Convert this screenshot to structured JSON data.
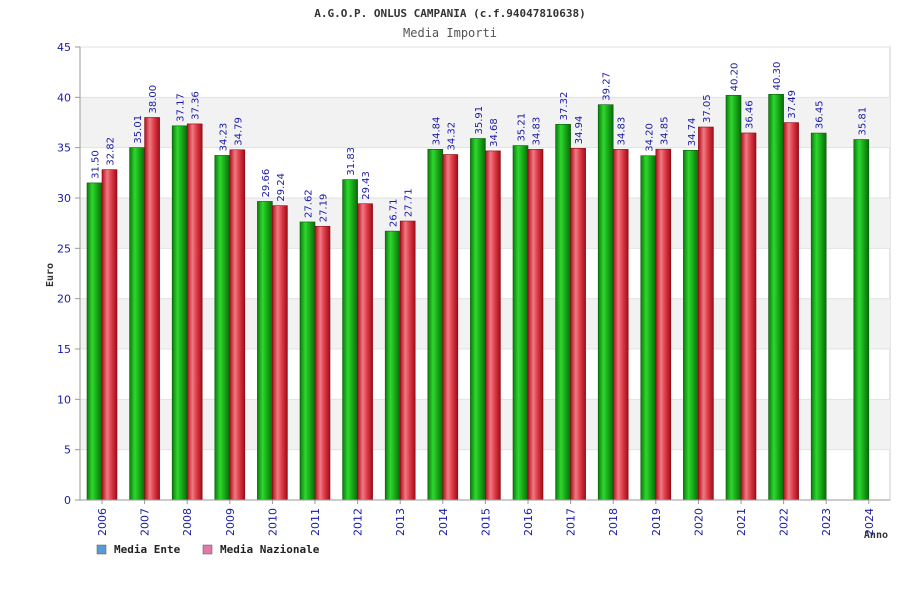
{
  "chart_data": {
    "type": "bar",
    "title": "A.G.O.P. ONLUS CAMPANIA (c.f.94047810638)",
    "subtitle": "Media Importi",
    "xlabel": "Anno",
    "ylabel": "Euro",
    "ylim": [
      0,
      45
    ],
    "yticks": [
      0,
      5,
      10,
      15,
      20,
      25,
      30,
      35,
      40,
      45
    ],
    "grid": true,
    "legend_position": "bottom-left",
    "categories": [
      "2006",
      "2007",
      "2008",
      "2009",
      "2010",
      "2011",
      "2012",
      "2013",
      "2014",
      "2015",
      "2016",
      "2017",
      "2018",
      "2019",
      "2020",
      "2021",
      "2022",
      "2023",
      "2024"
    ],
    "series": [
      {
        "name": "Media Ente",
        "legend_color": "#5b9bd5",
        "bar_color": "#1fa51f",
        "values": [
          31.5,
          35.01,
          37.17,
          34.23,
          29.66,
          27.62,
          31.83,
          26.71,
          34.84,
          35.91,
          35.21,
          37.32,
          39.27,
          34.2,
          34.74,
          40.2,
          40.3,
          36.45,
          35.81
        ],
        "labels": [
          "31.50",
          "35.01",
          "37.17",
          "34.23",
          "29.66",
          "27.62",
          "31.83",
          "26.71",
          "34.84",
          "35.91",
          "35.21",
          "37.32",
          "39.27",
          "34.20",
          "34.74",
          "40.20",
          "40.30",
          "36.45",
          "35.81"
        ]
      },
      {
        "name": "Media Nazionale",
        "legend_color": "#e377a8",
        "bar_color": "#e0303c",
        "values": [
          32.82,
          38.0,
          37.36,
          34.79,
          29.24,
          27.19,
          29.43,
          27.71,
          34.32,
          34.68,
          34.83,
          34.94,
          34.83,
          34.85,
          37.05,
          36.46,
          37.49,
          null,
          null
        ],
        "labels": [
          "32.82",
          "38.00",
          "37.36",
          "34.79",
          "29.24",
          "27.19",
          "29.43",
          "27.71",
          "34.32",
          "34.68",
          "34.83",
          "34.94",
          "34.83",
          "34.85",
          "37.05",
          "36.46",
          "37.49",
          null,
          null
        ]
      }
    ]
  }
}
